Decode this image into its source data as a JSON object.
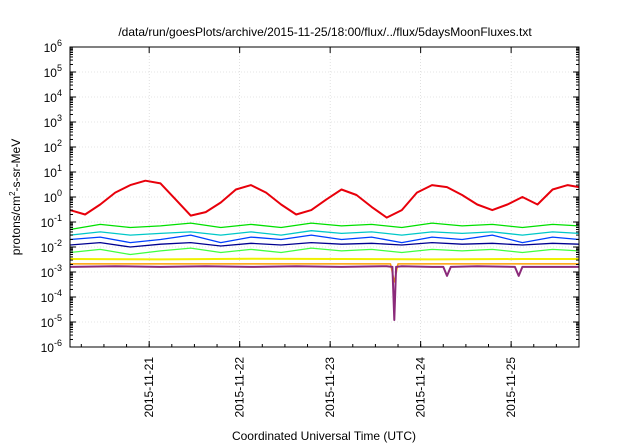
{
  "chart_data": {
    "type": "line",
    "title": "/data/run/goesPlots/archive/2015-11-25/18:00/flux/../flux/5daysMoonFluxes.txt",
    "xlabel": "Coordinated Universal Time (UTC)",
    "ylabel": {
      "base": "protons/cm",
      "sup": "2",
      "rest": "-s-sr-MeV"
    },
    "yscale": "log",
    "ylim": [
      1e-06,
      1000000.0
    ],
    "xlim": [
      "2015-11-20 03:00",
      "2015-11-25 18:00"
    ],
    "y_ticks": [
      {
        "base": "10",
        "exp": "-6",
        "value": 1e-06
      },
      {
        "base": "10",
        "exp": "-5",
        "value": 1e-05
      },
      {
        "base": "10",
        "exp": "-4",
        "value": 0.0001
      },
      {
        "base": "10",
        "exp": "-3",
        "value": 0.001
      },
      {
        "base": "10",
        "exp": "-2",
        "value": 0.01
      },
      {
        "base": "10",
        "exp": "-1",
        "value": 0.1
      },
      {
        "base": "10",
        "exp": "0",
        "value": 1.0
      },
      {
        "base": "10",
        "exp": "1",
        "value": 10.0
      },
      {
        "base": "10",
        "exp": "2",
        "value": 100.0
      },
      {
        "base": "10",
        "exp": "3",
        "value": 1000.0
      },
      {
        "base": "10",
        "exp": "4",
        "value": 10000.0
      },
      {
        "base": "10",
        "exp": "5",
        "value": 100000.0
      },
      {
        "base": "10",
        "exp": "6",
        "value": 1000000.0
      }
    ],
    "x_ticks": [
      "2015-11-21",
      "2015-11-22",
      "2015-11-23",
      "2015-11-24",
      "2015-11-25"
    ],
    "grid": true,
    "legend": "none",
    "series": [
      {
        "color": "#e8000b",
        "width": 2,
        "x": [
          "2015-11-20 03:00",
          "2015-11-20 07:00",
          "2015-11-20 11:00",
          "2015-11-20 15:00",
          "2015-11-20 19:00",
          "2015-11-20 23:00",
          "2015-11-21 03:00",
          "2015-11-21 07:00",
          "2015-11-21 11:00",
          "2015-11-21 15:00",
          "2015-11-21 19:00",
          "2015-11-21 23:00",
          "2015-11-22 03:00",
          "2015-11-22 07:00",
          "2015-11-22 11:00",
          "2015-11-22 15:00",
          "2015-11-22 19:00",
          "2015-11-22 23:00",
          "2015-11-23 03:00",
          "2015-11-23 07:00",
          "2015-11-23 11:00",
          "2015-11-23 15:00",
          "2015-11-23 19:00",
          "2015-11-23 23:00",
          "2015-11-24 03:00",
          "2015-11-24 07:00",
          "2015-11-24 11:00",
          "2015-11-24 15:00",
          "2015-11-24 19:00",
          "2015-11-24 23:00",
          "2015-11-25 03:00",
          "2015-11-25 07:00",
          "2015-11-25 11:00",
          "2015-11-25 15:00",
          "2015-11-25 18:00"
        ],
        "y": [
          0.3,
          0.2,
          0.5,
          1.5,
          3.0,
          4.5,
          3.5,
          0.8,
          0.18,
          0.25,
          0.6,
          2.0,
          3.0,
          1.5,
          0.5,
          0.2,
          0.3,
          0.8,
          2.0,
          1.2,
          0.4,
          0.15,
          0.3,
          1.5,
          3.0,
          2.5,
          1.2,
          0.5,
          0.3,
          0.5,
          1.0,
          0.5,
          2.0,
          3.0,
          2.5
        ]
      },
      {
        "color": "#00e000",
        "width": 1.3,
        "x": [
          "2015-11-20 03:00",
          "2015-11-20 11:00",
          "2015-11-20 19:00",
          "2015-11-21 03:00",
          "2015-11-21 11:00",
          "2015-11-21 19:00",
          "2015-11-22 03:00",
          "2015-11-22 11:00",
          "2015-11-22 19:00",
          "2015-11-23 03:00",
          "2015-11-23 11:00",
          "2015-11-23 19:00",
          "2015-11-24 03:00",
          "2015-11-24 11:00",
          "2015-11-24 19:00",
          "2015-11-25 03:00",
          "2015-11-25 11:00",
          "2015-11-25 18:00"
        ],
        "y": [
          0.05,
          0.08,
          0.06,
          0.07,
          0.09,
          0.06,
          0.08,
          0.06,
          0.09,
          0.07,
          0.08,
          0.06,
          0.09,
          0.07,
          0.08,
          0.06,
          0.08,
          0.07
        ]
      },
      {
        "color": "#00c8c8",
        "width": 1.3,
        "x": [
          "2015-11-20 03:00",
          "2015-11-20 11:00",
          "2015-11-20 19:00",
          "2015-11-21 03:00",
          "2015-11-21 11:00",
          "2015-11-21 19:00",
          "2015-11-22 03:00",
          "2015-11-22 11:00",
          "2015-11-22 19:00",
          "2015-11-23 03:00",
          "2015-11-23 11:00",
          "2015-11-23 19:00",
          "2015-11-24 03:00",
          "2015-11-24 11:00",
          "2015-11-24 19:00",
          "2015-11-25 03:00",
          "2015-11-25 11:00",
          "2015-11-25 18:00"
        ],
        "y": [
          0.03,
          0.04,
          0.03,
          0.035,
          0.04,
          0.03,
          0.04,
          0.03,
          0.045,
          0.035,
          0.04,
          0.03,
          0.04,
          0.035,
          0.04,
          0.03,
          0.04,
          0.035
        ]
      },
      {
        "color": "#0040ff",
        "width": 1.3,
        "x": [
          "2015-11-20 03:00",
          "2015-11-20 11:00",
          "2015-11-20 19:00",
          "2015-11-21 03:00",
          "2015-11-21 11:00",
          "2015-11-21 19:00",
          "2015-11-22 03:00",
          "2015-11-22 11:00",
          "2015-11-22 19:00",
          "2015-11-23 03:00",
          "2015-11-23 11:00",
          "2015-11-23 19:00",
          "2015-11-24 03:00",
          "2015-11-24 11:00",
          "2015-11-24 19:00",
          "2015-11-25 03:00",
          "2015-11-25 11:00",
          "2015-11-25 18:00"
        ],
        "y": [
          0.02,
          0.025,
          0.015,
          0.02,
          0.03,
          0.015,
          0.025,
          0.02,
          0.03,
          0.02,
          0.025,
          0.015,
          0.025,
          0.02,
          0.03,
          0.015,
          0.025,
          0.02
        ]
      },
      {
        "color": "#000090",
        "width": 1.3,
        "x": [
          "2015-11-20 03:00",
          "2015-11-20 11:00",
          "2015-11-20 19:00",
          "2015-11-21 03:00",
          "2015-11-21 11:00",
          "2015-11-21 19:00",
          "2015-11-22 03:00",
          "2015-11-22 11:00",
          "2015-11-22 19:00",
          "2015-11-23 03:00",
          "2015-11-23 11:00",
          "2015-11-23 19:00",
          "2015-11-24 03:00",
          "2015-11-24 11:00",
          "2015-11-24 19:00",
          "2015-11-25 03:00",
          "2015-11-25 11:00",
          "2015-11-25 18:00"
        ],
        "y": [
          0.012,
          0.015,
          0.01,
          0.013,
          0.015,
          0.011,
          0.014,
          0.012,
          0.015,
          0.013,
          0.014,
          0.012,
          0.015,
          0.013,
          0.014,
          0.012,
          0.014,
          0.013
        ]
      },
      {
        "color": "#40ff40",
        "width": 1.3,
        "x": [
          "2015-11-20 03:00",
          "2015-11-20 11:00",
          "2015-11-20 19:00",
          "2015-11-21 03:00",
          "2015-11-21 11:00",
          "2015-11-21 19:00",
          "2015-11-22 03:00",
          "2015-11-22 11:00",
          "2015-11-22 19:00",
          "2015-11-23 03:00",
          "2015-11-23 11:00",
          "2015-11-23 19:00",
          "2015-11-24 03:00",
          "2015-11-24 11:00",
          "2015-11-24 19:00",
          "2015-11-25 03:00",
          "2015-11-25 11:00",
          "2015-11-25 18:00"
        ],
        "y": [
          0.006,
          0.008,
          0.005,
          0.007,
          0.009,
          0.006,
          0.008,
          0.006,
          0.009,
          0.007,
          0.008,
          0.006,
          0.008,
          0.007,
          0.008,
          0.006,
          0.008,
          0.007
        ]
      },
      {
        "color": "#f0f000",
        "width": 2,
        "x": [
          "2015-11-20 03:00",
          "2015-11-21 03:00",
          "2015-11-22 03:00",
          "2015-11-23 03:00",
          "2015-11-24 03:00",
          "2015-11-25 03:00",
          "2015-11-25 18:00"
        ],
        "y": [
          0.0033,
          0.0032,
          0.0034,
          0.0033,
          0.0032,
          0.0033,
          0.0033
        ]
      },
      {
        "color": "#ffa000",
        "width": 1.5,
        "x": [
          "2015-11-20 03:00",
          "2015-11-21 03:00",
          "2015-11-22 03:00",
          "2015-11-23 03:00",
          "2015-11-23 16:00",
          "2015-11-23 17:00",
          "2015-11-23 18:00",
          "2015-11-24 03:00",
          "2015-11-25 03:00",
          "2015-11-25 18:00"
        ],
        "y": [
          0.0021,
          0.0021,
          0.0021,
          0.0021,
          0.0021,
          0.0004,
          0.0021,
          0.0021,
          0.0021,
          0.0021
        ]
      },
      {
        "color": "#8b2a7a",
        "width": 2,
        "x": [
          "2015-11-20 03:00",
          "2015-11-20 15:00",
          "2015-11-21 03:00",
          "2015-11-21 15:00",
          "2015-11-22 03:00",
          "2015-11-22 15:00",
          "2015-11-23 03:00",
          "2015-11-23 15:00",
          "2015-11-23 16:30",
          "2015-11-23 17:00",
          "2015-11-23 17:30",
          "2015-11-23 19:00",
          "2015-11-24 03:00",
          "2015-11-24 06:00",
          "2015-11-24 07:00",
          "2015-11-24 08:00",
          "2015-11-24 15:00",
          "2015-11-25 01:00",
          "2015-11-25 02:00",
          "2015-11-25 03:00",
          "2015-11-25 18:00"
        ],
        "y": [
          0.0016,
          0.0017,
          0.0016,
          0.0017,
          0.0016,
          0.0017,
          0.0016,
          0.0017,
          0.0016,
          1.2e-05,
          0.0016,
          0.0017,
          0.0016,
          0.0016,
          0.0007,
          0.0016,
          0.0017,
          0.0016,
          0.0007,
          0.0016,
          0.0016
        ]
      }
    ]
  }
}
